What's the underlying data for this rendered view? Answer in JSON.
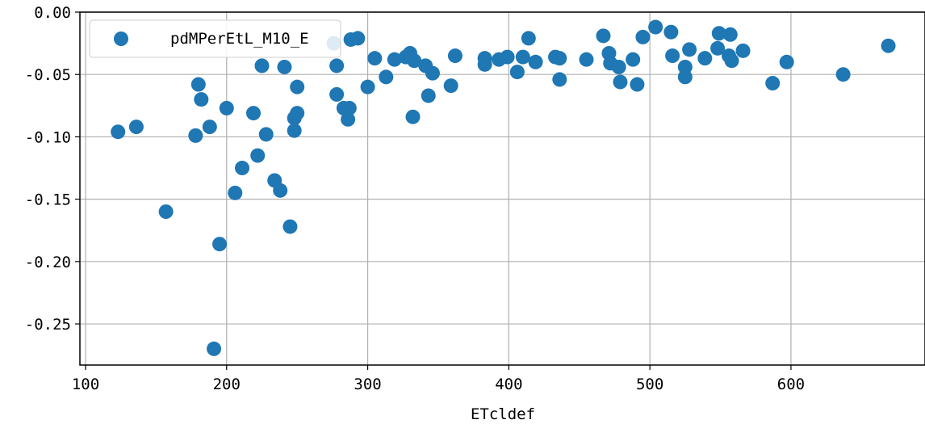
{
  "chart_data": {
    "type": "scatter",
    "title": "",
    "xlabel": "ETcldef",
    "ylabel": "",
    "xlim": [
      96,
      695
    ],
    "ylim": [
      -0.283,
      0.0
    ],
    "x_ticks": [
      100,
      200,
      300,
      400,
      500,
      600
    ],
    "x_tick_labels": [
      "100",
      "200",
      "300",
      "400",
      "500",
      "600"
    ],
    "y_ticks": [
      0.0,
      -0.05,
      -0.1,
      -0.15,
      -0.2,
      -0.25
    ],
    "y_tick_labels": [
      "0.00",
      "-0.05",
      "-0.10",
      "-0.15",
      "-0.20",
      "-0.25"
    ],
    "grid": true,
    "legend_position": "top-left",
    "color": "#1f77b4",
    "series": [
      {
        "name": "pdMPerEtL_M10_E",
        "points": [
          [
            123,
            -0.096
          ],
          [
            136,
            -0.092
          ],
          [
            157,
            -0.16
          ],
          [
            178,
            -0.099
          ],
          [
            180,
            -0.058
          ],
          [
            182,
            -0.07
          ],
          [
            188,
            -0.092
          ],
          [
            191,
            -0.27
          ],
          [
            195,
            -0.186
          ],
          [
            200,
            -0.077
          ],
          [
            206,
            -0.145
          ],
          [
            211,
            -0.125
          ],
          [
            219,
            -0.081
          ],
          [
            222,
            -0.115
          ],
          [
            225,
            -0.043
          ],
          [
            228,
            -0.098
          ],
          [
            234,
            -0.135
          ],
          [
            238,
            -0.143
          ],
          [
            241,
            -0.044
          ],
          [
            245,
            -0.172
          ],
          [
            248,
            -0.085
          ],
          [
            248,
            -0.095
          ],
          [
            250,
            -0.06
          ],
          [
            250,
            -0.081
          ],
          [
            276,
            -0.025
          ],
          [
            278,
            -0.043
          ],
          [
            278,
            -0.066
          ],
          [
            283,
            -0.077
          ],
          [
            286,
            -0.086
          ],
          [
            287,
            -0.077
          ],
          [
            288,
            -0.022
          ],
          [
            293,
            -0.021
          ],
          [
            300,
            -0.06
          ],
          [
            305,
            -0.037
          ],
          [
            313,
            -0.052
          ],
          [
            319,
            -0.038
          ],
          [
            327,
            -0.036
          ],
          [
            330,
            -0.033
          ],
          [
            332,
            -0.084
          ],
          [
            333,
            -0.039
          ],
          [
            341,
            -0.043
          ],
          [
            343,
            -0.067
          ],
          [
            346,
            -0.049
          ],
          [
            359,
            -0.059
          ],
          [
            362,
            -0.035
          ],
          [
            383,
            -0.037
          ],
          [
            383,
            -0.042
          ],
          [
            393,
            -0.038
          ],
          [
            399,
            -0.036
          ],
          [
            406,
            -0.048
          ],
          [
            410,
            -0.036
          ],
          [
            414,
            -0.021
          ],
          [
            419,
            -0.04
          ],
          [
            433,
            -0.036
          ],
          [
            436,
            -0.037
          ],
          [
            436,
            -0.054
          ],
          [
            455,
            -0.038
          ],
          [
            467,
            -0.019
          ],
          [
            471,
            -0.033
          ],
          [
            472,
            -0.041
          ],
          [
            478,
            -0.044
          ],
          [
            479,
            -0.056
          ],
          [
            488,
            -0.038
          ],
          [
            491,
            -0.058
          ],
          [
            495,
            -0.02
          ],
          [
            504,
            -0.012
          ],
          [
            515,
            -0.016
          ],
          [
            516,
            -0.035
          ],
          [
            525,
            -0.044
          ],
          [
            525,
            -0.052
          ],
          [
            528,
            -0.03
          ],
          [
            539,
            -0.037
          ],
          [
            548,
            -0.029
          ],
          [
            549,
            -0.017
          ],
          [
            556,
            -0.035
          ],
          [
            557,
            -0.018
          ],
          [
            558,
            -0.039
          ],
          [
            566,
            -0.031
          ],
          [
            587,
            -0.057
          ],
          [
            597,
            -0.04
          ],
          [
            637,
            -0.05
          ],
          [
            669,
            -0.027
          ]
        ]
      }
    ]
  }
}
